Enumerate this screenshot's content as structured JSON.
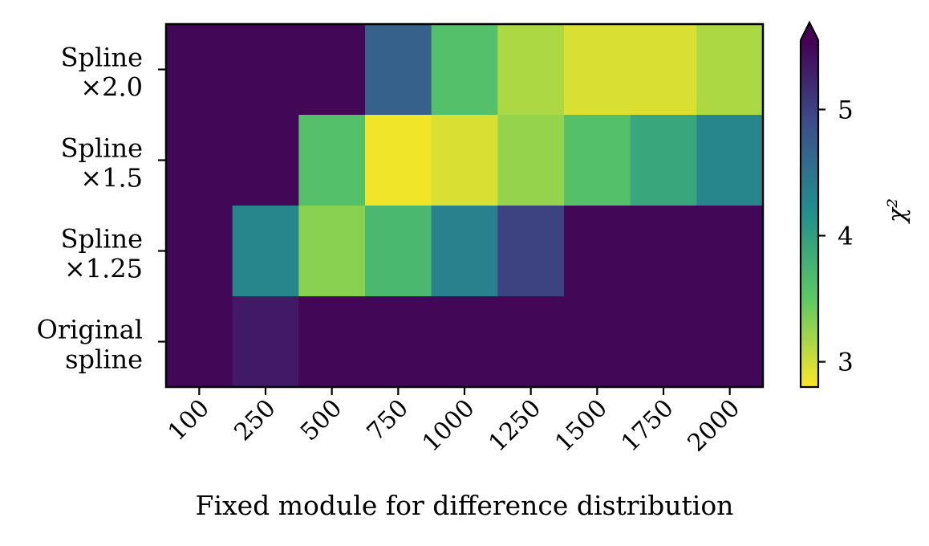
{
  "chart_data": {
    "type": "heatmap",
    "title": "",
    "xlabel": "Fixed module for difference distribution",
    "ylabel": "",
    "x_categories": [
      "100",
      "250",
      "500",
      "750",
      "1000",
      "1250",
      "1500",
      "1750",
      "2000"
    ],
    "y_categories": [
      [
        "Spline",
        "×2.0"
      ],
      [
        "Spline",
        "×1.5"
      ],
      [
        "Spline",
        "×1.25"
      ],
      [
        "Original",
        "spline"
      ]
    ],
    "values": [
      [
        5.5,
        5.5,
        5.5,
        4.7,
        3.6,
        3.15,
        2.95,
        2.95,
        3.15
      ],
      [
        5.5,
        5.5,
        3.6,
        2.85,
        2.95,
        3.25,
        3.6,
        3.9,
        4.3
      ],
      [
        5.5,
        4.3,
        3.3,
        3.7,
        4.35,
        5.0,
        5.5,
        5.5,
        5.5
      ],
      [
        5.5,
        5.35,
        5.5,
        5.5,
        5.5,
        5.5,
        5.5,
        5.5,
        5.5
      ]
    ],
    "colormap": "viridis_r",
    "colorbar": {
      "label": "χ²",
      "min": 2.8,
      "max": 5.55,
      "ticks": [
        "3",
        "4",
        "5"
      ],
      "extend": "max"
    }
  }
}
